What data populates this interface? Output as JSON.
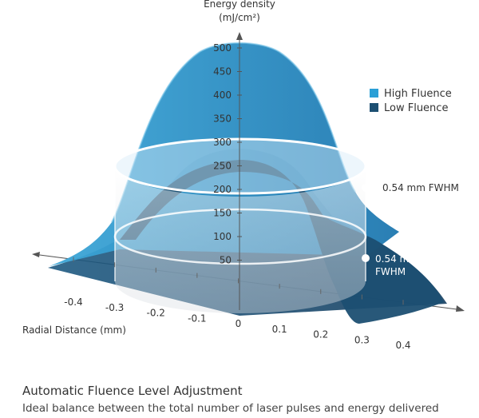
{
  "chart_data": {
    "type": "area",
    "ylabel_line1": "Energy density",
    "ylabel_line2": "(mJ/cm²)",
    "xlabel": "Radial Distance (mm)",
    "y_ticks": [
      500,
      450,
      400,
      350,
      300,
      250,
      200,
      150,
      100,
      50
    ],
    "x_ticks": [
      "-0.4",
      "-0.3",
      "-0.2",
      "-0.1",
      "0",
      "0.1",
      "0.2",
      "0.3",
      "0.4"
    ],
    "ylim": [
      0,
      500
    ],
    "series": [
      {
        "name": "High Fluence",
        "color": "#2a9fd6",
        "peak": 500,
        "fwhm": "0.54 mm FWHM",
        "fwhm_level": 250
      },
      {
        "name": "Low Fluence",
        "color": "#1c4f72",
        "peak": 300,
        "fwhm": "0.54 mm FWHM",
        "fwhm_level": 150
      }
    ],
    "legend_position": "top-right"
  },
  "caption": {
    "title": "Automatic Fluence Level Adjustment",
    "subtitle": "Ideal balance between the total number of laser pulses and energy delivered"
  }
}
